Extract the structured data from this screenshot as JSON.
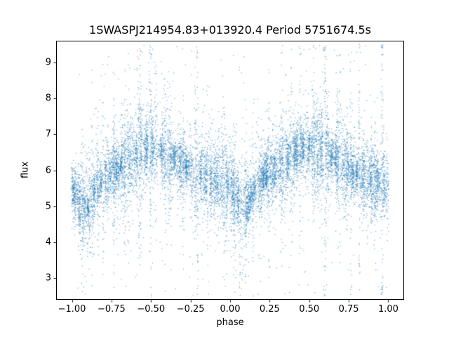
{
  "figure": {
    "background": "#ffffff"
  },
  "chart_data": {
    "type": "scatter",
    "title": "1SWASPJ214954.83+013920.4 Period 5751674.5s",
    "xlabel": "phase",
    "ylabel": "flux",
    "xlim": [
      -1.1,
      1.1
    ],
    "ylim": [
      2.4,
      9.6
    ],
    "x_ticks": [
      -1.0,
      -0.75,
      -0.5,
      -0.25,
      0.0,
      0.25,
      0.5,
      0.75,
      1.0
    ],
    "x_tick_labels": [
      "−1.00",
      "−0.75",
      "−0.50",
      "−0.25",
      "0.00",
      "0.25",
      "0.50",
      "0.75",
      "1.00"
    ],
    "y_ticks": [
      3,
      4,
      5,
      6,
      7,
      8,
      9
    ],
    "y_tick_labels": [
      "3",
      "4",
      "5",
      "6",
      "7",
      "8",
      "9"
    ],
    "grid": false,
    "legend": null,
    "point_color": "#1f77b4",
    "point_size": 1.3,
    "point_alpha": 0.55,
    "n_points": 13000,
    "seed": 11,
    "envelope": {
      "phase": [
        0.0,
        0.05,
        0.1,
        0.15,
        0.2,
        0.25,
        0.3,
        0.35,
        0.4,
        0.45,
        0.5,
        0.55,
        0.6,
        0.65,
        0.7,
        0.75,
        0.8,
        0.85,
        0.9,
        0.95,
        1.0
      ],
      "mean_flux": [
        5.55,
        5.1,
        4.9,
        5.45,
        5.75,
        5.95,
        6.05,
        6.2,
        6.4,
        6.6,
        6.65,
        6.55,
        6.45,
        6.35,
        6.15,
        6.0,
        5.9,
        5.8,
        5.7,
        5.65,
        5.55
      ],
      "sigma": [
        0.55,
        0.5,
        0.45,
        0.5,
        0.5,
        0.45,
        0.45,
        0.5,
        0.55,
        0.6,
        0.6,
        0.6,
        0.55,
        0.5,
        0.5,
        0.45,
        0.45,
        0.45,
        0.5,
        0.5,
        0.55
      ]
    },
    "scatter_model": {
      "n_columns": 270,
      "column_phase_jitter": 0.004,
      "column_sigma_lognorm": 0.5,
      "streak_fraction": 0.06,
      "streak_sigma_boost": 3.0,
      "heavy_tail_fraction": 0.05,
      "heavy_tail_sigma": 1.2,
      "outlier_fraction": 0.012,
      "outlier_flux_range": [
        2.5,
        9.5
      ]
    }
  }
}
